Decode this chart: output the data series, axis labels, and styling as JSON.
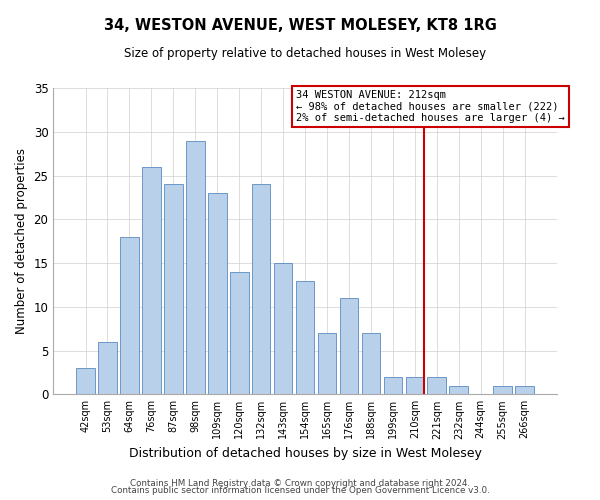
{
  "title": "34, WESTON AVENUE, WEST MOLESEY, KT8 1RG",
  "subtitle": "Size of property relative to detached houses in West Molesey",
  "xlabel": "Distribution of detached houses by size in West Molesey",
  "ylabel": "Number of detached properties",
  "bar_labels": [
    "42sqm",
    "53sqm",
    "64sqm",
    "76sqm",
    "87sqm",
    "98sqm",
    "109sqm",
    "120sqm",
    "132sqm",
    "143sqm",
    "154sqm",
    "165sqm",
    "176sqm",
    "188sqm",
    "199sqm",
    "210sqm",
    "221sqm",
    "232sqm",
    "244sqm",
    "255sqm",
    "266sqm"
  ],
  "bar_heights": [
    3,
    6,
    18,
    26,
    24,
    29,
    23,
    14,
    24,
    15,
    13,
    7,
    11,
    7,
    2,
    2,
    2,
    1,
    0,
    1,
    1
  ],
  "bar_color": "#b8d0ea",
  "bar_edge_color": "#5a8abf",
  "vline_index": 15,
  "vline_color": "#cc0000",
  "annotation_title": "34 WESTON AVENUE: 212sqm",
  "annotation_line1": "← 98% of detached houses are smaller (222)",
  "annotation_line2": "2% of semi-detached houses are larger (4) →",
  "annotation_box_edge": "#cc0000",
  "ylim": [
    0,
    35
  ],
  "yticks": [
    0,
    5,
    10,
    15,
    20,
    25,
    30,
    35
  ],
  "footer1": "Contains HM Land Registry data © Crown copyright and database right 2024.",
  "footer2": "Contains public sector information licensed under the Open Government Licence v3.0.",
  "background_color": "#ffffff",
  "grid_color": "#d0d0d0"
}
